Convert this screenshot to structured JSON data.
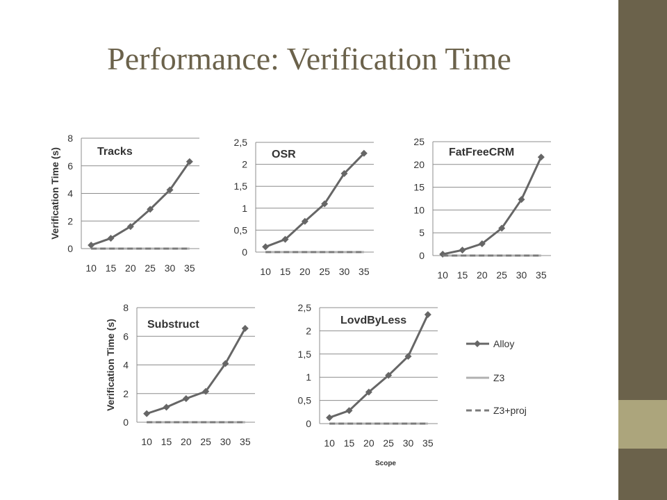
{
  "slide": {
    "title": "Performance: Verification Time",
    "colors": {
      "title": "#6b624b",
      "sidebar": "#6b624b",
      "sidebar_accent": "#aca57c",
      "alloy": "#666666",
      "z3": "#b0b0b0",
      "z3proj": "#7a7a7a"
    }
  },
  "chart_data": [
    {
      "type": "line",
      "title": "Tracks",
      "ylabel": "Verification Time (s)",
      "xlabel": "",
      "ylim": [
        0,
        8
      ],
      "yticks": [
        "0",
        "2",
        "4",
        "6",
        "8"
      ],
      "categories": [
        "10",
        "15",
        "20",
        "25",
        "30",
        "35"
      ],
      "series": [
        {
          "name": "Alloy",
          "values": [
            0.25,
            0.75,
            1.6,
            2.85,
            4.25,
            6.3
          ]
        },
        {
          "name": "Z3",
          "values": [
            0,
            0,
            0,
            0,
            0,
            0
          ]
        },
        {
          "name": "Z3+proj",
          "values": [
            0,
            0,
            0,
            0,
            0,
            0
          ]
        }
      ],
      "grid": true
    },
    {
      "type": "line",
      "title": "OSR",
      "ylabel": "",
      "xlabel": "",
      "ylim": [
        0,
        2.5
      ],
      "yticks": [
        "0",
        "0,5",
        "1",
        "1,5",
        "2",
        "2,5"
      ],
      "categories": [
        "10",
        "15",
        "20",
        "25",
        "30",
        "35"
      ],
      "series": [
        {
          "name": "Alloy",
          "values": [
            0.12,
            0.29,
            0.7,
            1.1,
            1.79,
            2.25
          ]
        },
        {
          "name": "Z3",
          "values": [
            0,
            0,
            0,
            0,
            0,
            0
          ]
        },
        {
          "name": "Z3+proj",
          "values": [
            0,
            0,
            0,
            0,
            0,
            0
          ]
        }
      ],
      "grid": true
    },
    {
      "type": "line",
      "title": "FatFreeCRM",
      "ylabel": "",
      "xlabel": "",
      "ylim": [
        0,
        25
      ],
      "yticks": [
        "0",
        "5",
        "10",
        "15",
        "20",
        "25"
      ],
      "categories": [
        "10",
        "15",
        "20",
        "25",
        "30",
        "35"
      ],
      "series": [
        {
          "name": "Alloy",
          "values": [
            0.3,
            1.2,
            2.6,
            6.0,
            12.3,
            21.6
          ]
        },
        {
          "name": "Z3",
          "values": [
            0,
            0,
            0,
            0,
            0,
            0
          ]
        },
        {
          "name": "Z3+proj",
          "values": [
            0,
            0,
            0,
            0,
            0,
            0
          ]
        }
      ],
      "grid": true
    },
    {
      "type": "line",
      "title": "Substruct",
      "ylabel": "Verification Time (s)",
      "xlabel": "",
      "ylim": [
        0,
        8
      ],
      "yticks": [
        "0",
        "2",
        "4",
        "6",
        "8"
      ],
      "categories": [
        "10",
        "15",
        "20",
        "25",
        "30",
        "35"
      ],
      "series": [
        {
          "name": "Alloy",
          "values": [
            0.6,
            1.05,
            1.65,
            2.15,
            4.1,
            6.55
          ]
        },
        {
          "name": "Z3",
          "values": [
            0,
            0,
            0,
            0,
            0,
            0
          ]
        },
        {
          "name": "Z3+proj",
          "values": [
            0,
            0,
            0,
            0,
            0,
            0
          ]
        }
      ],
      "grid": true
    },
    {
      "type": "line",
      "title": "LovdByLess",
      "ylabel": "",
      "xlabel": "Scope",
      "ylim": [
        0,
        2.5
      ],
      "yticks": [
        "0",
        "0,5",
        "1",
        "1,5",
        "2",
        "2,5"
      ],
      "categories": [
        "10",
        "15",
        "20",
        "25",
        "30",
        "35"
      ],
      "series": [
        {
          "name": "Alloy",
          "values": [
            0.13,
            0.28,
            0.68,
            1.04,
            1.45,
            2.35
          ]
        },
        {
          "name": "Z3",
          "values": [
            0,
            0,
            0,
            0,
            0,
            0
          ]
        },
        {
          "name": "Z3+proj",
          "values": [
            0,
            0,
            0,
            0,
            0,
            0
          ]
        }
      ],
      "grid": true,
      "legend": {
        "placement": "right",
        "entries": [
          "Alloy",
          "Z3",
          "Z3+proj"
        ]
      }
    }
  ]
}
